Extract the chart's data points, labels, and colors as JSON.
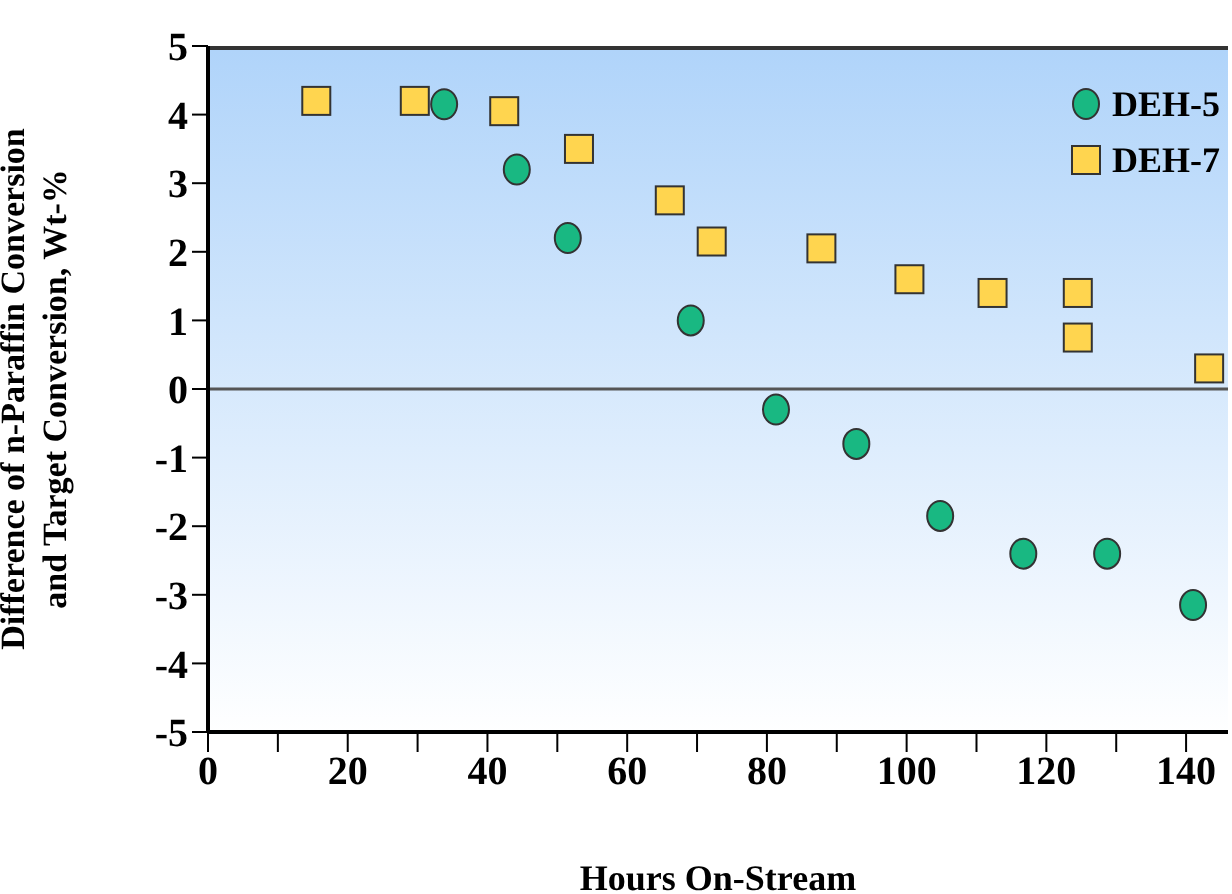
{
  "chart_data": {
    "type": "scatter",
    "xlabel": "Hours On-Stream",
    "ylabel": "Difference of n-Paraffin Conversion\nand Target Conversion, Wt-%",
    "xlim": [
      0,
      146
    ],
    "ylim": [
      -5,
      5
    ],
    "xticks": [
      0,
      {
        "value": 10,
        "label": null
      },
      20,
      {
        "value": 30,
        "label": null
      },
      40,
      {
        "value": 50,
        "label": null
      },
      60,
      {
        "value": 70,
        "label": null
      },
      80,
      {
        "value": 90,
        "label": null
      },
      100,
      {
        "value": 110,
        "label": null
      },
      120,
      {
        "value": 130,
        "label": null
      },
      140
    ],
    "yticks": [
      -5,
      -4,
      -3,
      -2,
      -1,
      0,
      1,
      2,
      3,
      4,
      5
    ],
    "grid": false,
    "legend": "top right",
    "ref_lines": [
      {
        "axis": "y",
        "value": 0,
        "color": "#555555"
      }
    ],
    "series": [
      {
        "name": "DEH-5",
        "color": "#19b882",
        "marker": "circle",
        "x": [
          33.8,
          44.2,
          51.5,
          69.1,
          81.3,
          92.8,
          104.8,
          116.7,
          128.7,
          141
        ],
        "values": [
          4.15,
          3.2,
          2.2,
          1.0,
          -0.3,
          -0.8,
          -1.85,
          -2.4,
          -2.4,
          -3.15
        ]
      },
      {
        "name": "DEH-7",
        "color": "#ffd54f",
        "marker": "square",
        "x": [
          15.5,
          29.6,
          42.4,
          53.1,
          66.1,
          72.1,
          87.8,
          100.4,
          112.3,
          124.5,
          124.5,
          143.3
        ],
        "values": [
          4.2,
          4.2,
          4.05,
          3.5,
          2.75,
          2.15,
          2.05,
          1.6,
          1.4,
          1.4,
          0.75,
          0.3
        ]
      }
    ]
  }
}
